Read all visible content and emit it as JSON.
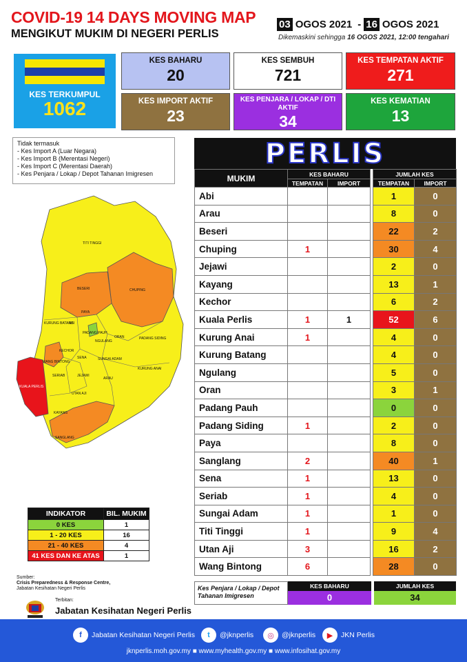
{
  "header": {
    "title": "COVID-19 14 DAYS MOVING MAP",
    "subtitle": "MENGIKUT MUKIM DI NEGERI PERLIS",
    "date_start_day": "03",
    "date_start_month": "OGOS 2021",
    "date_sep": "-",
    "date_end_day": "16",
    "date_end_month": "OGOS 2021",
    "updated_prefix": "Dikemaskini sehingga",
    "updated_value": "16 OGOS 2021, 12:00 tengahari"
  },
  "summary": {
    "total": {
      "label": "KES TERKUMPUL",
      "value": "1062"
    },
    "cards": [
      {
        "label": "KES BAHARU",
        "value": "20",
        "color": "#b7c2f2"
      },
      {
        "label": "KES SEMBUH",
        "value": "721",
        "color": "#ffffff"
      },
      {
        "label": "KES TEMPATAN AKTIF",
        "value": "271",
        "color": "#ef1c1c"
      },
      {
        "label": "KES IMPORT AKTIF",
        "value": "23",
        "color": "#8f7240"
      },
      {
        "label": "KES PENJARA / LOKAP / DTI AKTIF",
        "value": "34",
        "color": "#9b2fe0"
      },
      {
        "label": "KES KEMATIAN",
        "value": "13",
        "color": "#1ea53c"
      }
    ]
  },
  "note": {
    "title": "Tidak termasuk",
    "items": [
      "- Kes Import A (Luar Negara)",
      "- Kes Import B (Merentasi Negeri)",
      "- Kes Import C (Merentasi Daerah)",
      "- Kes Penjara / Lokap / Depot Tahanan Imigresen"
    ]
  },
  "map_labels": {
    "titi_tinggi": "TITI TINGGI",
    "beseri": "BESERI",
    "chuping": "CHUPING",
    "kurung_batang": "KURUNG BATANG",
    "paya": "PAYA",
    "abi": "ABI",
    "padang_pauh": "PADANG PAUH",
    "ngulang": "NGULANG",
    "oran": "ORAN",
    "padang_siding": "PADANG SIDING",
    "kechor": "KECHOR",
    "wang_bintong": "WANG BINTONG",
    "sena": "SENA",
    "sungai_adam": "SUNGAI ADAM",
    "kurung_anai": "KURUNG ANAI",
    "seriab": "SERIAB",
    "jejawi": "JEJAWI",
    "arau": "ARAU",
    "kuala_perlis": "KUALA PERLIS",
    "utan_aji": "UTAN AJI",
    "kayang": "KAYANG",
    "sanglang": "SANGLANG"
  },
  "indicator": {
    "headers": [
      "INDIKATOR",
      "BIL. MUKIM"
    ],
    "rows": [
      {
        "label": "0 KES",
        "count": "1",
        "color": "#8bd43c"
      },
      {
        "label": "1 - 20 KES",
        "count": "16",
        "color": "#f7ef1a"
      },
      {
        "label": "21 - 40 KES",
        "count": "4",
        "color": "#f48a23"
      },
      {
        "label": "41 KES DAN KE ATAS",
        "count": "1",
        "color": "#e8141b"
      }
    ]
  },
  "source": {
    "label": "Sumber:",
    "line1": "Crisis Preparedness & Response Centre,",
    "line2": "Jabatan Kesihatan Negeri Perlis"
  },
  "publisher": {
    "label": "Terbitan:",
    "name": "Jabatan Kesihatan Negeri Perlis"
  },
  "table": {
    "state": "PERLIS",
    "headers": {
      "mukim": "MUKIM",
      "kes_baharu": "KES BAHARU",
      "jumlah_kes": "JUMLAH KES",
      "tempatan": "TEMPATAN",
      "import": "IMPORT"
    },
    "rows": [
      {
        "mukim": "Abi",
        "nb_tempatan": "",
        "nb_import": "",
        "total_tempatan": "1",
        "total_import": "0",
        "color": "y"
      },
      {
        "mukim": "Arau",
        "nb_tempatan": "",
        "nb_import": "",
        "total_tempatan": "8",
        "total_import": "0",
        "color": "y"
      },
      {
        "mukim": "Beseri",
        "nb_tempatan": "",
        "nb_import": "",
        "total_tempatan": "22",
        "total_import": "2",
        "color": "o"
      },
      {
        "mukim": "Chuping",
        "nb_tempatan": "1",
        "nb_import": "",
        "total_tempatan": "30",
        "total_import": "4",
        "color": "o"
      },
      {
        "mukim": "Jejawi",
        "nb_tempatan": "",
        "nb_import": "",
        "total_tempatan": "2",
        "total_import": "0",
        "color": "y"
      },
      {
        "mukim": "Kayang",
        "nb_tempatan": "",
        "nb_import": "",
        "total_tempatan": "13",
        "total_import": "1",
        "color": "y"
      },
      {
        "mukim": "Kechor",
        "nb_tempatan": "",
        "nb_import": "",
        "total_tempatan": "6",
        "total_import": "2",
        "color": "y"
      },
      {
        "mukim": "Kuala Perlis",
        "nb_tempatan": "1",
        "nb_import": "1",
        "total_tempatan": "52",
        "total_import": "6",
        "color": "r"
      },
      {
        "mukim": "Kurung Anai",
        "nb_tempatan": "1",
        "nb_import": "",
        "total_tempatan": "4",
        "total_import": "0",
        "color": "y"
      },
      {
        "mukim": "Kurung Batang",
        "nb_tempatan": "",
        "nb_import": "",
        "total_tempatan": "4",
        "total_import": "0",
        "color": "y"
      },
      {
        "mukim": "Ngulang",
        "nb_tempatan": "",
        "nb_import": "",
        "total_tempatan": "5",
        "total_import": "0",
        "color": "y"
      },
      {
        "mukim": "Oran",
        "nb_tempatan": "",
        "nb_import": "",
        "total_tempatan": "3",
        "total_import": "1",
        "color": "y"
      },
      {
        "mukim": "Padang Pauh",
        "nb_tempatan": "",
        "nb_import": "",
        "total_tempatan": "0",
        "total_import": "0",
        "color": "g"
      },
      {
        "mukim": "Padang Siding",
        "nb_tempatan": "1",
        "nb_import": "",
        "total_tempatan": "2",
        "total_import": "0",
        "color": "y"
      },
      {
        "mukim": "Paya",
        "nb_tempatan": "",
        "nb_import": "",
        "total_tempatan": "8",
        "total_import": "0",
        "color": "y"
      },
      {
        "mukim": "Sanglang",
        "nb_tempatan": "2",
        "nb_import": "",
        "total_tempatan": "40",
        "total_import": "1",
        "color": "o"
      },
      {
        "mukim": "Sena",
        "nb_tempatan": "1",
        "nb_import": "",
        "total_tempatan": "13",
        "total_import": "0",
        "color": "y"
      },
      {
        "mukim": "Seriab",
        "nb_tempatan": "1",
        "nb_import": "",
        "total_tempatan": "4",
        "total_import": "0",
        "color": "y"
      },
      {
        "mukim": "Sungai Adam",
        "nb_tempatan": "1",
        "nb_import": "",
        "total_tempatan": "1",
        "total_import": "0",
        "color": "y"
      },
      {
        "mukim": "Titi Tinggi",
        "nb_tempatan": "1",
        "nb_import": "",
        "total_tempatan": "9",
        "total_import": "4",
        "color": "y"
      },
      {
        "mukim": "Utan Aji",
        "nb_tempatan": "3",
        "nb_import": "",
        "total_tempatan": "16",
        "total_import": "2",
        "color": "y"
      },
      {
        "mukim": "Wang Bintong",
        "nb_tempatan": "6",
        "nb_import": "",
        "total_tempatan": "28",
        "total_import": "0",
        "color": "o"
      }
    ]
  },
  "prison": {
    "label": "Kes Penjara / Lokap / Depot Tahanan Imigresen",
    "baharu_header": "KES BAHARU",
    "baharu_value": "0",
    "jumlah_header": "JUMLAH KES",
    "jumlah_value": "34"
  },
  "footer": {
    "facebook": "Jabatan Kesihatan Negeri Perlis",
    "twitter": "@jknperlis",
    "instagram": "@jknperlis",
    "youtube": "JKN Perlis",
    "links": "jknperlis.moh.gov.my ■ www.myhealth.gov.my ■ www.infosihat.gov.my"
  }
}
